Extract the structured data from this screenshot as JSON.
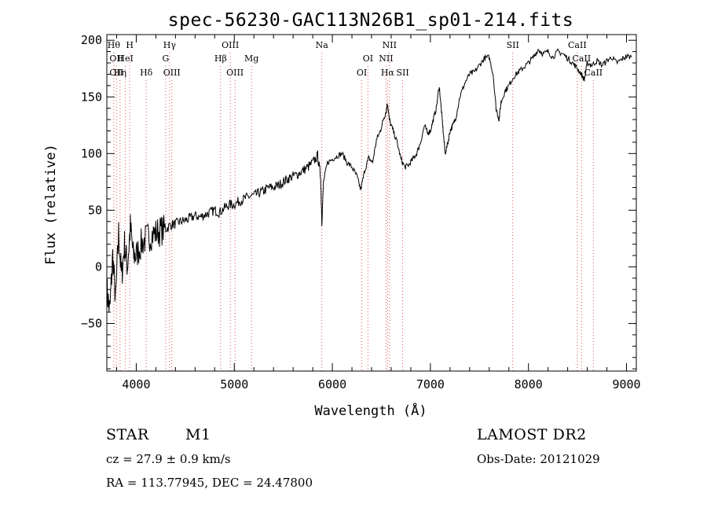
{
  "chart_data": {
    "type": "line",
    "title": "spec-56230-GAC113N26B1_sp01-214.fits",
    "xlabel": "Wavelength (Å)",
    "ylabel": "Flux (relative)",
    "xlim": [
      3700,
      9100
    ],
    "ylim": [
      -92,
      205
    ],
    "xticks": [
      4000,
      5000,
      6000,
      7000,
      8000,
      9000
    ],
    "yticks": [
      -50,
      0,
      50,
      100,
      150,
      200
    ],
    "tick_labels_x": [
      "4000",
      "5000",
      "6000",
      "7000",
      "8000",
      "9000"
    ],
    "tick_labels_y": [
      "−50",
      "0",
      "50",
      "100",
      "150",
      "200"
    ],
    "grid": false,
    "series": [
      {
        "color": "#000000",
        "x": [
          3700,
          3730,
          3760,
          3790,
          3820,
          3850,
          3880,
          3910,
          3940,
          3970,
          4000,
          4050,
          4100,
          4150,
          4200,
          4250,
          4300,
          4350,
          4400,
          4450,
          4500,
          4550,
          4600,
          4650,
          4700,
          4750,
          4800,
          4850,
          4900,
          4950,
          5000,
          5050,
          5100,
          5150,
          5200,
          5250,
          5300,
          5350,
          5400,
          5450,
          5500,
          5550,
          5600,
          5650,
          5700,
          5750,
          5800,
          5850,
          5880,
          5893,
          5910,
          5950,
          6000,
          6050,
          6100,
          6150,
          6200,
          6250,
          6290,
          6330,
          6370,
          6410,
          6450,
          6490,
          6520,
          6550,
          6563,
          6580,
          6620,
          6660,
          6700,
          6740,
          6780,
          6820,
          6860,
          6900,
          6940,
          6970,
          7000,
          7030,
          7060,
          7090,
          7110,
          7130,
          7150,
          7180,
          7200,
          7230,
          7260,
          7300,
          7350,
          7400,
          7450,
          7500,
          7550,
          7600,
          7640,
          7670,
          7700,
          7720,
          7760,
          7800,
          7850,
          7900,
          7950,
          8000,
          8050,
          8100,
          8150,
          8200,
          8250,
          8300,
          8350,
          8400,
          8450,
          8500,
          8540,
          8570,
          8600,
          8650,
          8700,
          8750,
          8800,
          8850,
          8900,
          8950,
          9000,
          9050
        ],
        "y": [
          -20,
          -40,
          10,
          -30,
          30,
          -10,
          20,
          0,
          35,
          10,
          10,
          20,
          25,
          28,
          30,
          32,
          33,
          37,
          38,
          40,
          41,
          43,
          45,
          44,
          46,
          48,
          50,
          48,
          52,
          55,
          55,
          58,
          60,
          62,
          63,
          65,
          67,
          70,
          70,
          72,
          75,
          78,
          80,
          82,
          85,
          88,
          92,
          98,
          80,
          40,
          75,
          92,
          95,
          98,
          100,
          92,
          88,
          80,
          68,
          85,
          96,
          92,
          112,
          120,
          130,
          138,
          145,
          130,
          120,
          110,
          95,
          88,
          90,
          95,
          100,
          110,
          125,
          118,
          120,
          130,
          140,
          160,
          140,
          120,
          100,
          110,
          120,
          125,
          132,
          150,
          162,
          170,
          172,
          178,
          184,
          185,
          170,
          140,
          130,
          145,
          155,
          160,
          168,
          172,
          176,
          180,
          185,
          192,
          188,
          190,
          185,
          190,
          188,
          184,
          180,
          175,
          170,
          165,
          180,
          178,
          182,
          178,
          182,
          185,
          180,
          183,
          186,
          185
        ]
      }
    ],
    "lines": [
      {
        "x": 3771,
        "label": "Hθ",
        "row": 0
      },
      {
        "x": 3798,
        "label": "OII",
        "row": 1
      },
      {
        "x": 3798,
        "label": "OII",
        "row": 2
      },
      {
        "x": 3835,
        "label": "Hη",
        "row": 2
      },
      {
        "x": 3889,
        "label": "HeI",
        "row": 1
      },
      {
        "x": 3934,
        "label": "H",
        "row": 0
      },
      {
        "x": 4102,
        "label": "Hδ",
        "row": 2
      },
      {
        "x": 4300,
        "label": "G",
        "row": 1
      },
      {
        "x": 4340,
        "label": "Hγ",
        "row": 0
      },
      {
        "x": 4363,
        "label": "OIII",
        "row": 2
      },
      {
        "x": 4861,
        "label": "Hβ",
        "row": 1
      },
      {
        "x": 4959,
        "label": "OIII",
        "row": 0
      },
      {
        "x": 5007,
        "label": "OIII",
        "row": 2
      },
      {
        "x": 5175,
        "label": "Mg",
        "row": 1
      },
      {
        "x": 5893,
        "label": "Na",
        "row": 0
      },
      {
        "x": 6300,
        "label": "OI",
        "row": 2
      },
      {
        "x": 6363,
        "label": "OI",
        "row": 1
      },
      {
        "x": 6548,
        "label": "NII",
        "row": 1
      },
      {
        "x": 6563,
        "label": "Hα",
        "row": 2
      },
      {
        "x": 6583,
        "label": "NII",
        "row": 0
      },
      {
        "x": 6717,
        "label": "SII",
        "row": 2
      },
      {
        "x": 7840,
        "label": "SII",
        "row": 0
      },
      {
        "x": 8498,
        "label": "CaII",
        "row": 0
      },
      {
        "x": 8542,
        "label": "CaII",
        "row": 1
      },
      {
        "x": 8662,
        "label": "CaII",
        "row": 2
      }
    ]
  },
  "info": {
    "class": "STAR",
    "subclass": "M1",
    "survey": "LAMOST DR2",
    "cz": "cz = 27.9 ± 0.9 km/s",
    "obsdate": "Obs-Date: 20121029",
    "radec": "RA = 113.77945, DEC =  24.47800"
  }
}
